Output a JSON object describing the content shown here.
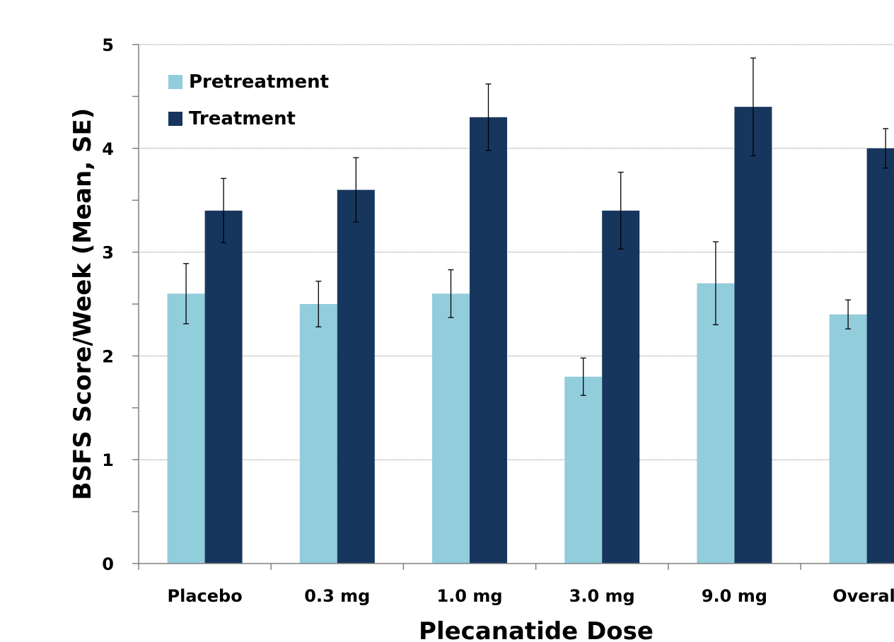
{
  "chart_data": {
    "type": "bar",
    "xlabel": "Plecanatide Dose",
    "ylabel": "BSFS Score/Week (Mean, SE)",
    "categories": [
      "Placebo",
      "0.3 mg",
      "1.0 mg",
      "3.0 mg",
      "9.0 mg",
      "Overall"
    ],
    "series": [
      {
        "name": "Pretreatment",
        "color": "#92CDDC",
        "values": [
          2.6,
          2.5,
          2.6,
          1.8,
          2.7,
          2.4
        ],
        "error": [
          0.29,
          0.22,
          0.23,
          0.18,
          0.4,
          0.14
        ]
      },
      {
        "name": "Treatment",
        "color": "#17365D",
        "values": [
          3.4,
          3.6,
          4.3,
          3.4,
          4.4,
          4.0
        ],
        "error": [
          0.31,
          0.31,
          0.32,
          0.37,
          0.47,
          0.19
        ]
      }
    ],
    "ylim": [
      0,
      5
    ],
    "yticks": [
      0,
      1,
      2,
      3,
      4,
      5
    ],
    "grid": true,
    "legend_position": "top-left"
  }
}
